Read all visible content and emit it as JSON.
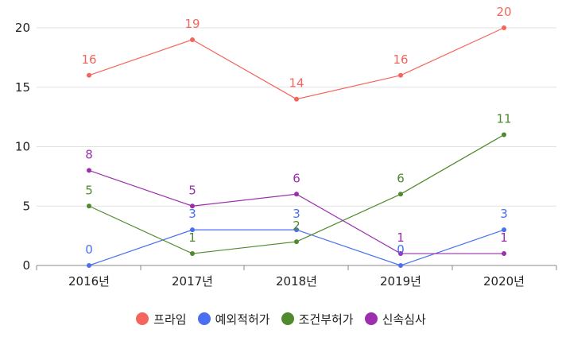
{
  "chart_data": {
    "type": "line",
    "categories": [
      "2016년",
      "2017년",
      "2018년",
      "2019년",
      "2020년"
    ],
    "series": [
      {
        "name": "프라임",
        "color": "#f4665d",
        "values": [
          16,
          19,
          14,
          16,
          20
        ]
      },
      {
        "name": "예외적허가",
        "color": "#4a6ff0",
        "values": [
          0,
          3,
          3,
          0,
          3
        ]
      },
      {
        "name": "조건부허가",
        "color": "#4f8a2c",
        "values": [
          5,
          1,
          2,
          6,
          11
        ]
      },
      {
        "name": "신속심사",
        "color": "#9b2fae",
        "values": [
          8,
          5,
          6,
          1,
          1
        ]
      }
    ],
    "ylim": [
      0,
      20
    ],
    "yticks": [
      "0",
      "5",
      "10",
      "15",
      "20"
    ],
    "grid": true,
    "legend_position": "bottom"
  }
}
